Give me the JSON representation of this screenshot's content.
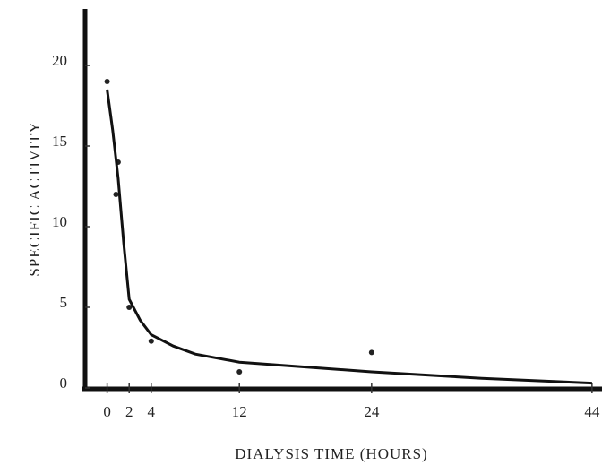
{
  "chart_data": {
    "type": "scatter",
    "x_label": "DIALYSIS TIME (HOURS)",
    "y_label": "SPECIFIC ACTIVITY",
    "xlim": [
      -2,
      44.5
    ],
    "ylim": [
      0,
      23
    ],
    "xticks": [
      0,
      2,
      4,
      12,
      24,
      44
    ],
    "yticks": [
      0,
      5,
      10,
      15,
      20
    ],
    "grid": false,
    "series": [
      {
        "mode": "markers",
        "color": "#222222",
        "x": [
          0,
          1,
          0.8,
          2,
          4,
          12,
          24
        ],
        "values": [
          19,
          14,
          12,
          5,
          2.9,
          1,
          2.2
        ]
      },
      {
        "mode": "line",
        "color": "#111111",
        "x": [
          0,
          0.5,
          1,
          1.5,
          2,
          3,
          4,
          6,
          8,
          12,
          18,
          24,
          34,
          44
        ],
        "values": [
          18.5,
          16,
          13,
          9,
          5.5,
          4.2,
          3.3,
          2.6,
          2.1,
          1.6,
          1.3,
          1,
          0.6,
          0.3
        ]
      }
    ]
  }
}
